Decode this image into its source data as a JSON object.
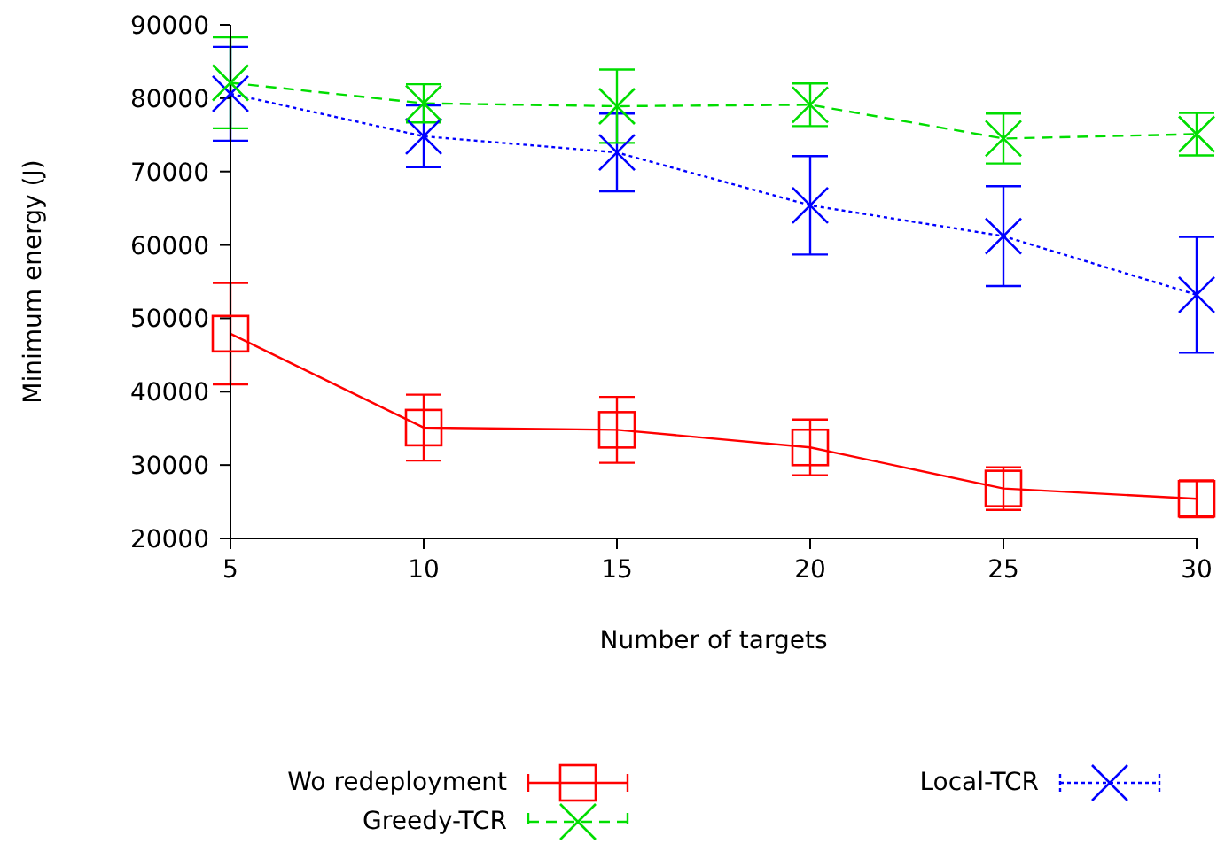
{
  "chart_data": {
    "type": "line",
    "xlabel": "Number of targets",
    "ylabel": "Minimum energy (J)",
    "x": [
      5,
      10,
      15,
      20,
      25,
      30
    ],
    "xlim": [
      5,
      30
    ],
    "xticks": [
      5,
      10,
      15,
      20,
      25,
      30
    ],
    "ylim": [
      20000,
      90000
    ],
    "yticks": [
      20000,
      30000,
      40000,
      50000,
      60000,
      70000,
      80000,
      90000
    ],
    "grid": false,
    "legend": "bottom",
    "series": [
      {
        "name": "Wo redeployment",
        "color": "#ff0000",
        "marker": "square",
        "line_style": "solid",
        "values": [
          47900,
          35100,
          34800,
          32400,
          26800,
          25400
        ],
        "errors": [
          6900,
          4500,
          4500,
          3800,
          2900,
          2500
        ]
      },
      {
        "name": "Local-TCR",
        "color": "#0000ff",
        "marker": "cross",
        "line_style": "dotted",
        "values": [
          80600,
          74800,
          72600,
          65400,
          61200,
          53200
        ],
        "errors": [
          6400,
          4200,
          5300,
          6700,
          6800,
          7900
        ]
      },
      {
        "name": "Greedy-TCR",
        "color": "#00dd00",
        "marker": "cross",
        "line_style": "dashed",
        "values": [
          82100,
          79300,
          78900,
          79100,
          74500,
          75100
        ],
        "errors": [
          6200,
          2600,
          5000,
          2900,
          3400,
          2900
        ]
      }
    ]
  }
}
